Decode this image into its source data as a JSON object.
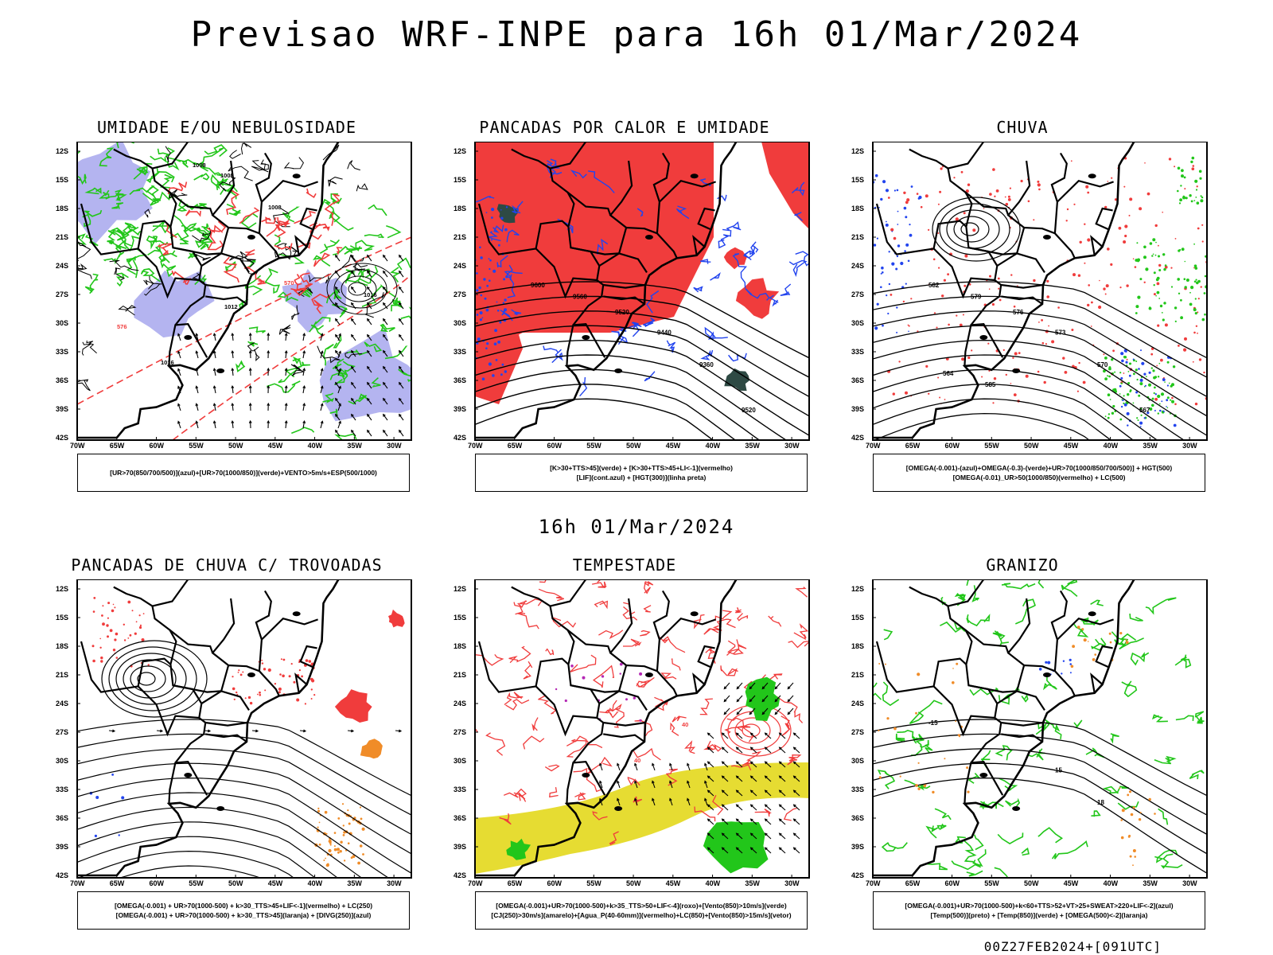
{
  "title": "Previsao WRF-INPE  para 16h 01/Mar/2024",
  "subtitle": "16h 01/Mar/2024",
  "footer": "00Z27FEB2024+[091UTC]",
  "axes": {
    "lat_labels": [
      "12S",
      "15S",
      "18S",
      "21S",
      "24S",
      "27S",
      "30S",
      "33S",
      "36S",
      "39S",
      "42S"
    ],
    "lon_labels": [
      "70W",
      "65W",
      "60W",
      "55W",
      "50W",
      "45W",
      "40W",
      "35W",
      "30W"
    ]
  },
  "panels": [
    {
      "title": "UMIDADE E/OU NEBULOSIDADE",
      "legend": [
        "[UR>70(850/700/500)](azul)+[UR>70(1000/850)](verde)+VENTO>5m/s+ESP(500/1000)"
      ],
      "style": "umidade",
      "labels": [
        "1008",
        "1008",
        "1008",
        "1012",
        "1016",
        "570",
        "576",
        "1016"
      ]
    },
    {
      "title": "PANCADAS POR CALOR E UMIDADE",
      "legend": [
        "[K>30+TTS>45](verde) + [K>30+TTS>45+LI<-1](vermelho)",
        "[LIF](cont.azul) + [HGT(300)](linha preta)"
      ],
      "style": "pancadas",
      "labels": [
        "9600",
        "9560",
        "9520",
        "9440",
        "9360",
        "9520"
      ]
    },
    {
      "title": "CHUVA",
      "legend": [
        "[OMEGA(-0.001)-(azul)+OMEGA(-0.3)-(verde)+UR>70(1000/850/700/500)] + HGT(500)",
        "[OMEGA(-0.01)_UR>50(1000/850)(vermelho) + LC(500)"
      ],
      "style": "chuva",
      "labels": [
        "582",
        "579",
        "576",
        "573",
        "570",
        "567",
        "564",
        "585"
      ]
    },
    {
      "title": "PANCADAS DE CHUVA C/ TROVOADAS",
      "legend": [
        "[OMEGA(-0.001) + UR>70(1000-500) + k>30_TTS>45+LIF<-1](vermelho) + LC(250)",
        "[OMEGA(-0.001) + UR>70(1000-500) + k>30_TTS>45](laranja) + [DIVG(250)](azul)"
      ],
      "style": "trovoadas",
      "labels": []
    },
    {
      "title": "TEMPESTADE",
      "legend": [
        "[OMEGA(-0.001)+UR>70(1000-500)+k>35_TTS>50+LIF<-4](roxo)+[Vento(850)>10m/s](verde)",
        "[CJ(250)>30m/s](amarelo)+[Agua_P(40-60mm)](vermelho)+LC(850)+[Vento(850)>15m/s](vetor)"
      ],
      "style": "tempestade",
      "labels": [
        "40",
        "40"
      ]
    },
    {
      "title": "GRANIZO",
      "legend": [
        "[OMEGA(-0.001)+UR>70(1000-500)+k<60+TTS>52+VT>25+SWEAT>220+LIF<-2](azul)",
        "[Temp(500)](preto) + [Temp(850)](verde) + [OMEGA(500)<-2](laranja)"
      ],
      "style": "granizo",
      "labels": [
        "-15",
        "15",
        "18"
      ]
    }
  ],
  "colors": {
    "red": "#f03c3c",
    "green": "#22c61a",
    "blue": "#2244ee",
    "lavender": "#b4b4f0",
    "yellow": "#e6dc32",
    "orange": "#f08c28",
    "purple": "#b428b4",
    "darkgreen": "#2e4a44"
  }
}
